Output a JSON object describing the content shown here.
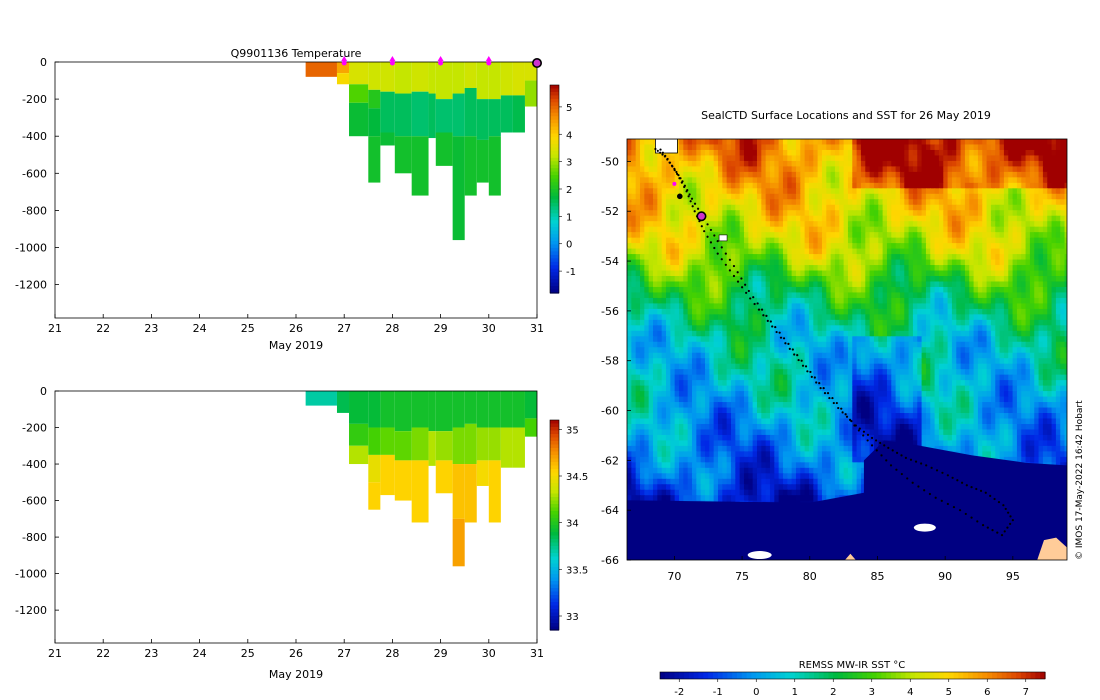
{
  "chart_data": [
    {
      "type": "heatmap",
      "title": "Q9901136  Temperature",
      "xlabel": "May 2019",
      "ylabel": "",
      "xlim": [
        21,
        31
      ],
      "ylim": [
        -1380,
        0
      ],
      "x_ticks": [
        "21",
        "22",
        "23",
        "24",
        "25",
        "26",
        "27",
        "28",
        "29",
        "30",
        "31"
      ],
      "y_ticks": [
        "0",
        "-200",
        "-400",
        "-600",
        "-800",
        "-1000",
        "-1200"
      ],
      "colorbar": {
        "ticks": [
          "5",
          "4",
          "3",
          "2",
          "1",
          "0",
          "-1"
        ],
        "range": [
          -1.8,
          5.8
        ]
      },
      "profile_marker_days": [
        27,
        28,
        29,
        30
      ],
      "current_marker_day": 31,
      "profiles": [
        {
          "x0": 26.2,
          "x1": 26.85,
          "max": -120,
          "layers": [
            [
              0,
              -80,
              5.0
            ]
          ]
        },
        {
          "x0": 26.85,
          "x1": 27.1,
          "max": -120,
          "layers": [
            [
              0,
              -60,
              4.4
            ],
            [
              -60,
              -120,
              3.8
            ]
          ]
        },
        {
          "x0": 27.1,
          "x1": 27.5,
          "max": -400,
          "layers": [
            [
              0,
              -120,
              3.4
            ],
            [
              -120,
              -220,
              2.5
            ],
            [
              -220,
              -400,
              1.8
            ]
          ]
        },
        {
          "x0": 27.5,
          "x1": 27.75,
          "max": -650,
          "layers": [
            [
              0,
              -150,
              3.3
            ],
            [
              -150,
              -250,
              2.1
            ],
            [
              -250,
              -400,
              1.7
            ],
            [
              -400,
              -650,
              1.9
            ]
          ]
        },
        {
          "x0": 27.75,
          "x1": 28.05,
          "max": -450,
          "layers": [
            [
              0,
              -160,
              3.3
            ],
            [
              -160,
              -380,
              1.5
            ],
            [
              -380,
              -450,
              1.8
            ]
          ]
        },
        {
          "x0": 28.05,
          "x1": 28.4,
          "max": -600,
          "layers": [
            [
              0,
              -170,
              3.2
            ],
            [
              -170,
              -400,
              1.5
            ],
            [
              -400,
              -600,
              1.9
            ]
          ]
        },
        {
          "x0": 28.4,
          "x1": 28.75,
          "max": -720,
          "layers": [
            [
              0,
              -160,
              3.3
            ],
            [
              -160,
              -400,
              1.4
            ],
            [
              -400,
              -720,
              1.9
            ]
          ]
        },
        {
          "x0": 28.75,
          "x1": 28.9,
          "max": -410,
          "layers": [
            [
              0,
              -170,
              3.2
            ],
            [
              -170,
              -410,
              1.5
            ]
          ]
        },
        {
          "x0": 28.9,
          "x1": 29.25,
          "max": -560,
          "layers": [
            [
              0,
              -200,
              3.2
            ],
            [
              -200,
              -380,
              1.4
            ],
            [
              -380,
              -560,
              1.9
            ]
          ]
        },
        {
          "x0": 29.25,
          "x1": 29.5,
          "max": -960,
          "layers": [
            [
              0,
              -170,
              3.2
            ],
            [
              -170,
              -400,
              1.4
            ],
            [
              -400,
              -960,
              1.8
            ]
          ]
        },
        {
          "x0": 29.5,
          "x1": 29.75,
          "max": -720,
          "layers": [
            [
              0,
              -140,
              3.3
            ],
            [
              -140,
              -400,
              1.5
            ],
            [
              -400,
              -720,
              1.9
            ]
          ]
        },
        {
          "x0": 29.75,
          "x1": 30.0,
          "max": -650,
          "layers": [
            [
              0,
              -200,
              3.2
            ],
            [
              -200,
              -420,
              1.5
            ],
            [
              -420,
              -650,
              1.9
            ]
          ]
        },
        {
          "x0": 30.0,
          "x1": 30.25,
          "max": -720,
          "layers": [
            [
              0,
              -200,
              3.2
            ],
            [
              -200,
              -400,
              1.5
            ],
            [
              -400,
              -720,
              1.9
            ]
          ]
        },
        {
          "x0": 30.25,
          "x1": 30.5,
          "max": -380,
          "layers": [
            [
              0,
              -180,
              3.3
            ],
            [
              -180,
              -380,
              1.5
            ]
          ]
        },
        {
          "x0": 30.5,
          "x1": 30.75,
          "max": -380,
          "layers": [
            [
              0,
              -180,
              3.4
            ],
            [
              -180,
              -380,
              1.6
            ]
          ]
        },
        {
          "x0": 30.75,
          "x1": 31.0,
          "max": -240,
          "layers": [
            [
              0,
              -100,
              3.4
            ],
            [
              -100,
              -240,
              2.9
            ]
          ]
        }
      ]
    },
    {
      "type": "heatmap",
      "title": "",
      "xlabel": "May 2019",
      "ylabel": "",
      "xlim": [
        21,
        31
      ],
      "ylim": [
        -1380,
        0
      ],
      "x_ticks": [
        "21",
        "22",
        "23",
        "24",
        "25",
        "26",
        "27",
        "28",
        "29",
        "30",
        "31"
      ],
      "y_ticks": [
        "0",
        "-200",
        "-400",
        "-600",
        "-800",
        "-1000",
        "-1200"
      ],
      "colorbar": {
        "ticks": [
          "35",
          "34.5",
          "34",
          "33.5",
          "33"
        ],
        "range": [
          32.85,
          35.1
        ]
      },
      "profiles": [
        {
          "x0": 26.2,
          "x1": 26.85,
          "max": -80,
          "layers": [
            [
              0,
              -80,
              33.7
            ]
          ]
        },
        {
          "x0": 26.85,
          "x1": 27.1,
          "max": -120,
          "layers": [
            [
              0,
              -120,
              33.85
            ]
          ]
        },
        {
          "x0": 27.1,
          "x1": 27.5,
          "max": -400,
          "layers": [
            [
              0,
              -180,
              33.9
            ],
            [
              -180,
              -300,
              34.05
            ],
            [
              -300,
              -400,
              34.3
            ]
          ]
        },
        {
          "x0": 27.5,
          "x1": 27.75,
          "max": -650,
          "layers": [
            [
              0,
              -200,
              33.9
            ],
            [
              -200,
              -350,
              34.1
            ],
            [
              -350,
              -500,
              34.45
            ],
            [
              -500,
              -650,
              34.55
            ]
          ]
        },
        {
          "x0": 27.75,
          "x1": 28.05,
          "max": -570,
          "layers": [
            [
              0,
              -200,
              33.95
            ],
            [
              -200,
              -350,
              34.15
            ],
            [
              -350,
              -570,
              34.55
            ]
          ]
        },
        {
          "x0": 28.05,
          "x1": 28.4,
          "max": -600,
          "layers": [
            [
              0,
              -220,
              33.95
            ],
            [
              -220,
              -380,
              34.15
            ],
            [
              -380,
              -600,
              34.55
            ]
          ]
        },
        {
          "x0": 28.4,
          "x1": 28.75,
          "max": -720,
          "layers": [
            [
              0,
              -200,
              33.95
            ],
            [
              -200,
              -380,
              34.2
            ],
            [
              -380,
              -720,
              34.55
            ]
          ]
        },
        {
          "x0": 28.75,
          "x1": 28.9,
          "max": -410,
          "layers": [
            [
              0,
              -220,
              33.95
            ],
            [
              -220,
              -410,
              34.3
            ]
          ]
        },
        {
          "x0": 28.9,
          "x1": 29.25,
          "max": -560,
          "layers": [
            [
              0,
              -220,
              33.95
            ],
            [
              -220,
              -380,
              34.25
            ],
            [
              -380,
              -560,
              34.55
            ]
          ]
        },
        {
          "x0": 29.25,
          "x1": 29.5,
          "max": -960,
          "layers": [
            [
              0,
              -200,
              33.95
            ],
            [
              -200,
              -400,
              34.2
            ],
            [
              -400,
              -700,
              34.6
            ],
            [
              -700,
              -960,
              34.7
            ]
          ]
        },
        {
          "x0": 29.5,
          "x1": 29.75,
          "max": -720,
          "layers": [
            [
              0,
              -180,
              33.95
            ],
            [
              -180,
              -400,
              34.2
            ],
            [
              -400,
              -720,
              34.6
            ]
          ]
        },
        {
          "x0": 29.75,
          "x1": 30.0,
          "max": -520,
          "layers": [
            [
              0,
              -200,
              33.95
            ],
            [
              -200,
              -380,
              34.25
            ],
            [
              -380,
              -520,
              34.5
            ]
          ]
        },
        {
          "x0": 30.0,
          "x1": 30.25,
          "max": -720,
          "layers": [
            [
              0,
              -200,
              33.95
            ],
            [
              -200,
              -380,
              34.25
            ],
            [
              -380,
              -720,
              34.55
            ]
          ]
        },
        {
          "x0": 30.25,
          "x1": 30.5,
          "max": -420,
          "layers": [
            [
              0,
              -200,
              33.95
            ],
            [
              -200,
              -420,
              34.3
            ]
          ]
        },
        {
          "x0": 30.5,
          "x1": 30.75,
          "max": -420,
          "layers": [
            [
              0,
              -200,
              33.95
            ],
            [
              -200,
              -420,
              34.3
            ]
          ]
        },
        {
          "x0": 30.75,
          "x1": 31.0,
          "max": -250,
          "layers": [
            [
              0,
              -150,
              33.9
            ],
            [
              -150,
              -250,
              34.1
            ]
          ]
        }
      ]
    },
    {
      "type": "heatmap",
      "title": "SealCTD Surface Locations and SST for 26 May 2019",
      "xlabel": "",
      "ylabel": "",
      "xlim": [
        66.5,
        99
      ],
      "ylim": [
        -66,
        -49.1
      ],
      "x_ticks": [
        "70",
        "75",
        "80",
        "85",
        "90",
        "95"
      ],
      "y_ticks": [
        "-50",
        "-52",
        "-54",
        "-56",
        "-58",
        "-60",
        "-62",
        "-64",
        "-66"
      ],
      "credit": "© IMOS 17-May-2022 16:42 Hobart",
      "colorbar": {
        "label": "REMSS MW-IR SST °C",
        "ticks": [
          "-2",
          "-1",
          "0",
          "1",
          "2",
          "3",
          "4",
          "5",
          "6",
          "7"
        ],
        "range": [
          -2.5,
          7.5
        ]
      },
      "sst_field": {
        "lat_bands": [
          {
            "lat": -49.1,
            "temp": 6.2
          },
          {
            "lat": -51.5,
            "temp": 5.0
          },
          {
            "lat": -53.5,
            "temp": 4.0
          },
          {
            "lat": -55,
            "temp": 2.4
          },
          {
            "lat": -57,
            "temp": 1.0
          },
          {
            "lat": -59,
            "temp": 0.6
          },
          {
            "lat": -61,
            "temp": -0.2
          },
          {
            "lat": -62.5,
            "temp": -0.8
          },
          {
            "lat": -63.5,
            "temp": -1.6
          }
        ],
        "ice_edge_lat": -63.6
      },
      "track_lon": [
        68.6,
        69.3,
        70.0,
        70.6,
        71.3,
        72.2,
        73.2,
        74.4,
        75.5,
        76.8,
        78.1,
        79.4,
        80.7,
        82.0,
        83.3,
        84.6,
        86.0,
        87.6,
        89.3,
        91.1,
        92.8,
        94.2,
        95.0,
        94.3,
        93.0,
        91.6,
        90.2,
        88.6,
        87.1,
        85.8,
        84.6,
        83.4,
        82.1,
        80.8,
        79.5,
        78.2,
        76.9,
        75.6,
        74.4,
        73.2,
        72.2,
        71.5,
        70.9,
        70.2,
        69.5,
        68.8
      ],
      "track_lat": [
        -49.5,
        -49.8,
        -50.3,
        -50.8,
        -51.5,
        -52.3,
        -53.2,
        -54.2,
        -55.2,
        -56.2,
        -57.1,
        -58.0,
        -58.9,
        -59.7,
        -60.6,
        -61.4,
        -62.2,
        -62.9,
        -63.5,
        -64.0,
        -64.6,
        -65.0,
        -64.4,
        -63.8,
        -63.3,
        -63.0,
        -62.6,
        -62.2,
        -61.9,
        -61.5,
        -61.1,
        -60.6,
        -59.9,
        -59.1,
        -58.2,
        -57.3,
        -56.4,
        -55.5,
        -54.6,
        -53.7,
        -52.8,
        -52.0,
        -51.2,
        -50.5,
        -49.9,
        -49.4
      ],
      "current_position": {
        "lon": 72.0,
        "lat": -52.2
      }
    }
  ]
}
